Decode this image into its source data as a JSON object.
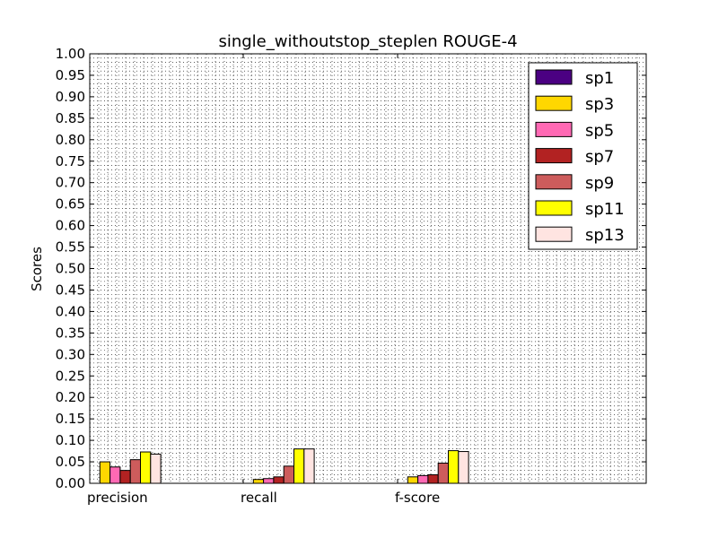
{
  "chart_data": {
    "type": "bar",
    "title": "single_withoutstop_steplen ROUGE-4",
    "xlabel": "",
    "ylabel": "Scores",
    "ylim": [
      0,
      1.0
    ],
    "yticks": [
      "0.00",
      "0.05",
      "0.10",
      "0.15",
      "0.20",
      "0.25",
      "0.30",
      "0.35",
      "0.40",
      "0.45",
      "0.50",
      "0.55",
      "0.60",
      "0.65",
      "0.70",
      "0.75",
      "0.80",
      "0.85",
      "0.90",
      "0.95",
      "1.00"
    ],
    "categories": [
      "precision",
      "recall",
      "f-score"
    ],
    "grid": true,
    "grid_style": "dotted",
    "legend_position": "top-right",
    "series": [
      {
        "name": "sp1",
        "color": "#4b0082",
        "values": [
          0.0,
          0.0,
          0.0
        ]
      },
      {
        "name": "sp3",
        "color": "#ffd700",
        "values": [
          0.05,
          0.009,
          0.015
        ]
      },
      {
        "name": "sp5",
        "color": "#ff69b4",
        "values": [
          0.038,
          0.011,
          0.018
        ]
      },
      {
        "name": "sp7",
        "color": "#b22222",
        "values": [
          0.03,
          0.015,
          0.02
        ]
      },
      {
        "name": "sp9",
        "color": "#cd5c5c",
        "values": [
          0.055,
          0.04,
          0.047
        ]
      },
      {
        "name": "sp11",
        "color": "#ffff00",
        "values": [
          0.073,
          0.08,
          0.076
        ]
      },
      {
        "name": "sp13",
        "color": "#ffe4e1",
        "values": [
          0.068,
          0.08,
          0.074
        ]
      }
    ]
  }
}
